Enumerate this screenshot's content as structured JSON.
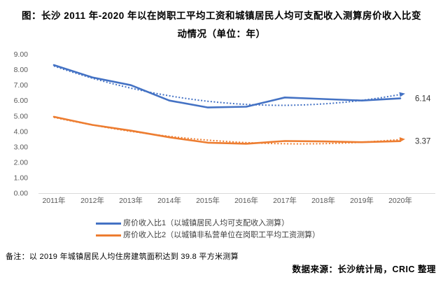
{
  "title": "图：长沙 2011 年-2020 年以在岗职工平均工资和城镇居民人均可支配收入测算房价收入比变动情况（单位：年）",
  "note": "备注：以 2019 年城镇居民人均住房建筑面积达到 39.8 平方米测算",
  "source": "数据来源：长沙统计局，CRIC 整理",
  "colors": {
    "series1": "#4472C4",
    "series2": "#ED7D31",
    "axis_text": "#595959",
    "axis_line": "#D9D9D9",
    "end_label_text": "#333333"
  },
  "chart_data": {
    "type": "line",
    "title": "图：长沙 2011 年-2020 年以在岗职工平均工资和城镇居民人均可支配收入测算房价收入比变动情况（单位：年）",
    "categories": [
      "2011年",
      "2012年",
      "2013年",
      "2014年",
      "2015年",
      "2016年",
      "2017年",
      "2018年",
      "2019年",
      "2020年"
    ],
    "series": [
      {
        "name": "房价收入比1（以城镇居民人均可支配收入测算）",
        "color": "#4472C4",
        "values": [
          8.3,
          7.5,
          7.0,
          6.0,
          5.55,
          5.6,
          6.2,
          6.1,
          6.0,
          6.14
        ],
        "end_label": "6.14",
        "trendline": true
      },
      {
        "name": "房价收入比2（以城镇非私营单位在岗职工平均工资测算）",
        "color": "#ED7D31",
        "values": [
          4.95,
          4.42,
          4.05,
          3.62,
          3.27,
          3.2,
          3.38,
          3.35,
          3.3,
          3.37
        ],
        "end_label": "3.37",
        "trendline": true
      }
    ],
    "ylim": [
      0,
      9
    ],
    "ytick_step": 1,
    "ytick_format": "0.00",
    "grid": false,
    "legend_position": "bottom"
  }
}
